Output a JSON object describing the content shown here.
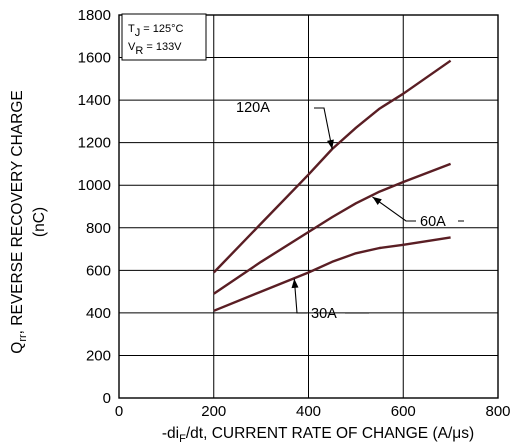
{
  "chart_data": {
    "type": "line",
    "x_label": {
      "main": "-di",
      "sub": "F",
      "rest": "/dt, CURRENT RATE OF CHANGE (A/μs)"
    },
    "y_label": {
      "line1_main": "Q",
      "line1_sub": "rr",
      "line1_rest": ", REVERSE RECOVERY CHARGE",
      "line2": "(nC)"
    },
    "x_ticks": [
      0,
      200,
      400,
      600,
      800
    ],
    "y_ticks": [
      0,
      200,
      400,
      600,
      800,
      1000,
      1200,
      1400,
      1600,
      1800
    ],
    "xlim": [
      0,
      800
    ],
    "ylim": [
      0,
      1800
    ],
    "grid": true,
    "conditions": [
      {
        "main": "T",
        "sub": "J",
        "rest": " = 125°C"
      },
      {
        "main": "V",
        "sub": "R",
        "rest": " = 133V"
      }
    ],
    "series": [
      {
        "name": "120A",
        "x": [
          200,
          300,
          400,
          450,
          500,
          550,
          600,
          700
        ],
        "y": [
          590,
          820,
          1050,
          1170,
          1270,
          1360,
          1430,
          1585
        ]
      },
      {
        "name": "60A",
        "x": [
          200,
          300,
          400,
          450,
          500,
          550,
          600,
          700
        ],
        "y": [
          490,
          640,
          780,
          850,
          915,
          970,
          1015,
          1100
        ]
      },
      {
        "name": "30A",
        "x": [
          200,
          300,
          400,
          450,
          500,
          550,
          600,
          700
        ],
        "y": [
          410,
          500,
          590,
          640,
          680,
          705,
          720,
          755
        ]
      }
    ]
  }
}
